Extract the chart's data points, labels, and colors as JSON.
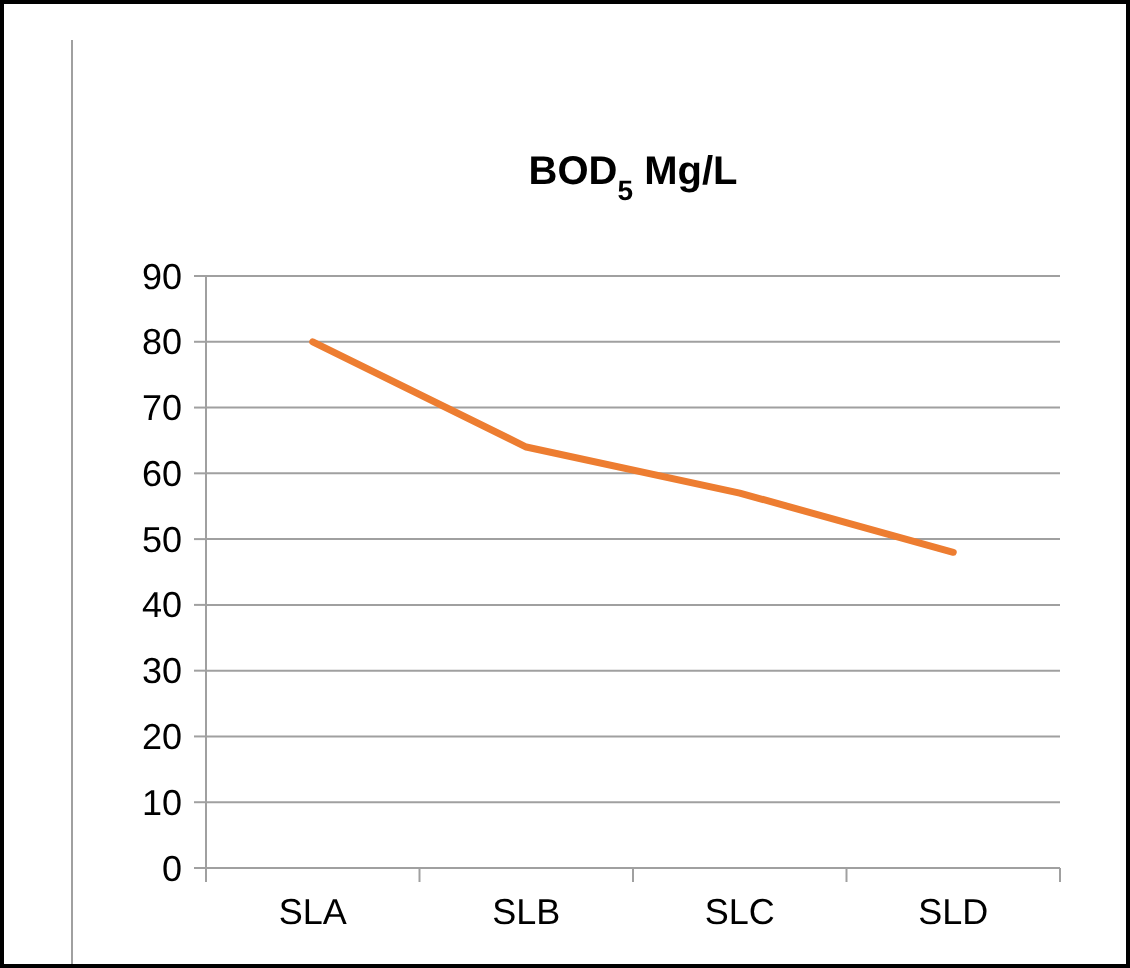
{
  "chart_data": {
    "type": "line",
    "title": "BOD$_{5}$ Mg/L",
    "categories": [
      "SLA",
      "SLB",
      "SLC",
      "SLD"
    ],
    "series": [
      {
        "color": "#ed7d31",
        "values": [
          80,
          64,
          57,
          48
        ]
      }
    ],
    "ylim": [
      0,
      90
    ],
    "yticks": [
      0,
      10,
      20,
      30,
      40,
      50,
      60,
      70,
      80,
      90
    ],
    "grid": "y",
    "line_style": "solid"
  }
}
